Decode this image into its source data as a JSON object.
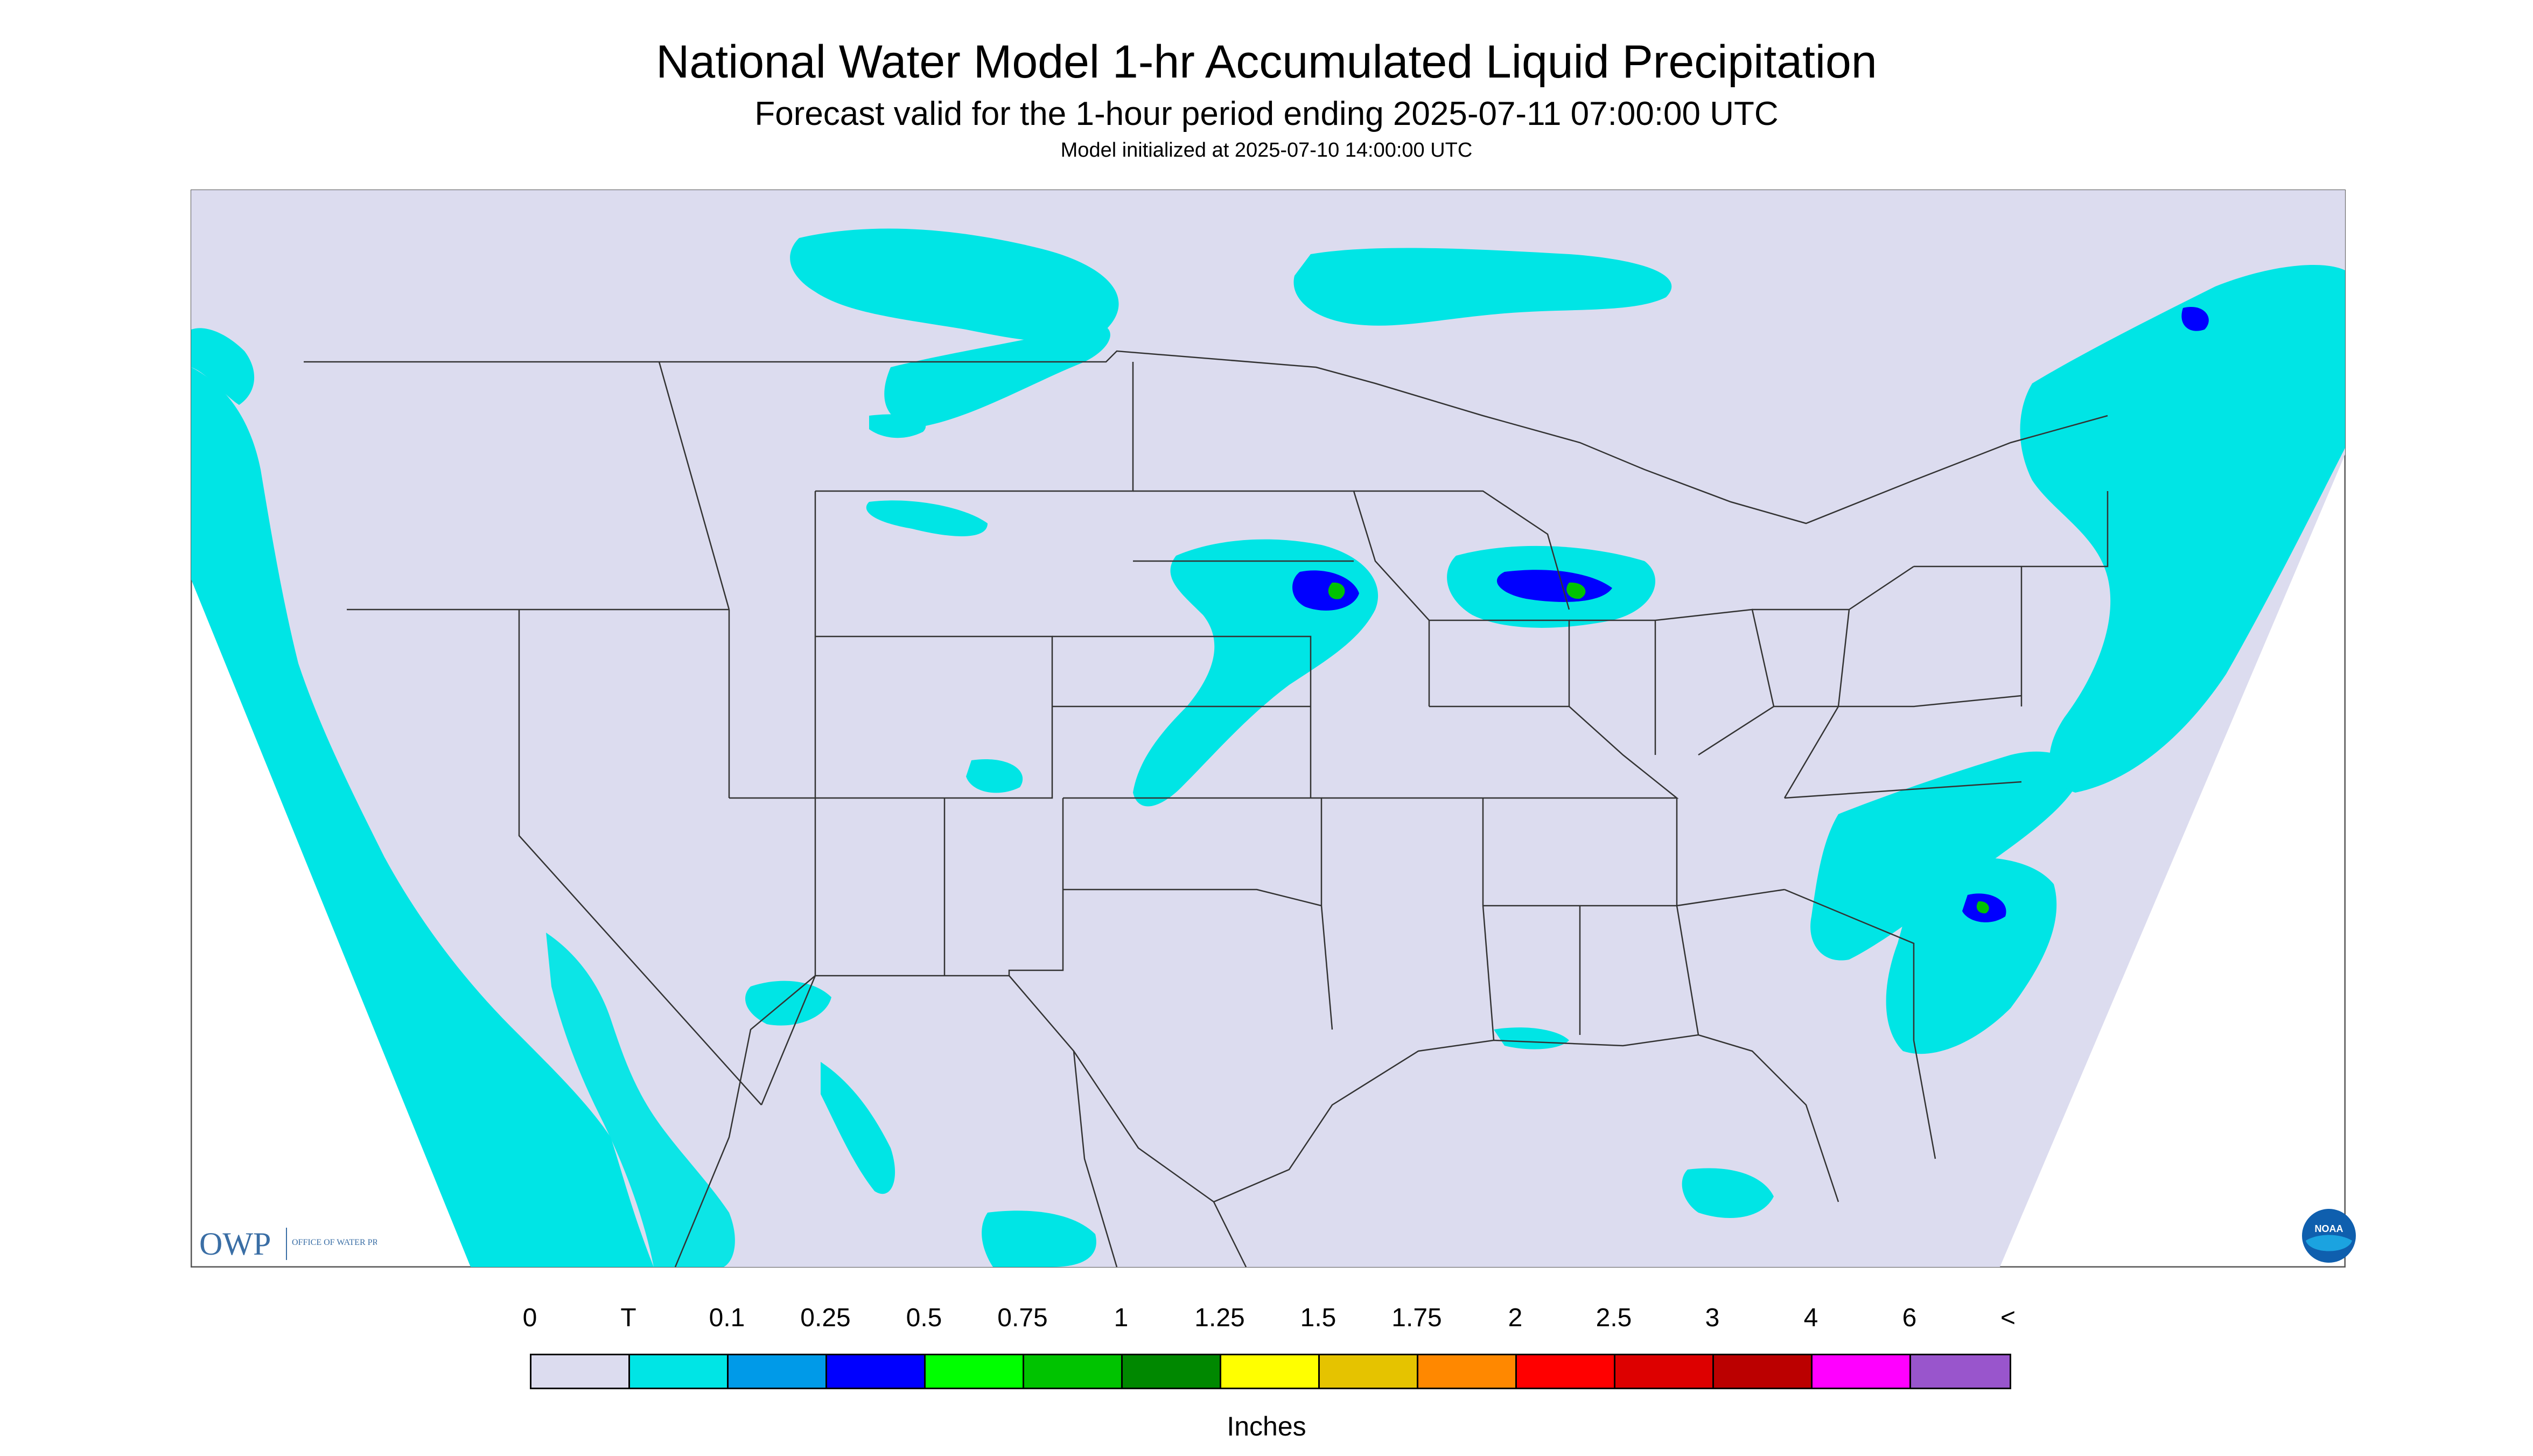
{
  "header": {
    "title": "National Water Model 1-hr Accumulated Liquid Precipitation",
    "subtitle": "Forecast valid for the 1-hour period ending 2025-07-11 07:00:00 UTC",
    "init_line": "Model initialized at 2025-07-10 14:00:00 UTC"
  },
  "map": {
    "background_color": "#dcdcef",
    "precip_light_color": "#00e5e5",
    "precip_mid_color": "#009ae8",
    "precip_heavy_color": "#0000ff",
    "precip_peak_color": "#00c300",
    "border_color": "#333333",
    "icons": [
      "owp-logo",
      "noaa-logo"
    ]
  },
  "logos": {
    "owp_text": "OWP",
    "owp_sub": "OFFICE OF WATER PREDICTION",
    "noaa_text": "NOAA"
  },
  "legend": {
    "labels": [
      "0",
      "T",
      "0.1",
      "0.25",
      "0.5",
      "0.75",
      "1",
      "1.25",
      "1.5",
      "1.75",
      "2",
      "2.5",
      "3",
      "4",
      "6",
      "<"
    ],
    "colors": [
      "#dcdcef",
      "#00e5e5",
      "#009ae8",
      "#0000ff",
      "#00ff00",
      "#00c300",
      "#008800",
      "#ffff00",
      "#e5c300",
      "#ff8800",
      "#ff0000",
      "#dd0000",
      "#bb0000",
      "#ff00ff",
      "#9955cc"
    ],
    "units": "Inches"
  }
}
